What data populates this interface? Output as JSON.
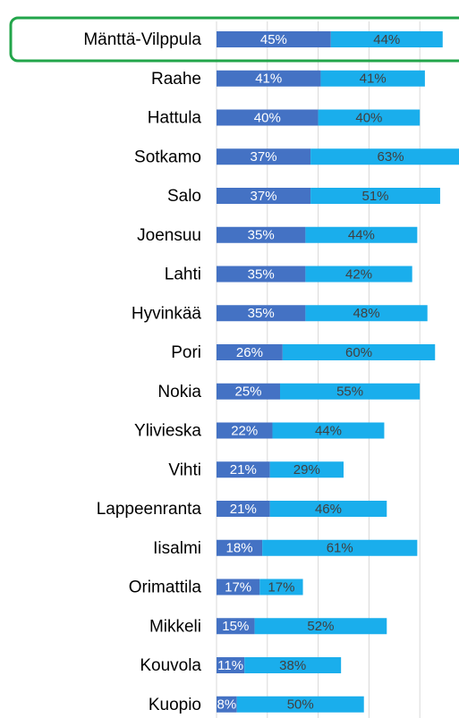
{
  "chart_data": {
    "type": "bar",
    "orientation": "horizontal",
    "stacked": true,
    "categories": [
      "Mänttä-Vilppula",
      "Raahe",
      "Hattula",
      "Sotkamo",
      "Salo",
      "Joensuu",
      "Lahti",
      "Hyvinkää",
      "Pori",
      "Nokia",
      "Ylivieska",
      "Vihti",
      "Lappeenranta",
      "Iisalmi",
      "Orimattila",
      "Mikkeli",
      "Kouvola",
      "Kuopio"
    ],
    "series": [
      {
        "color": "#4472c4",
        "label_color": "#ffffff",
        "values": [
          45,
          41,
          40,
          37,
          37,
          35,
          35,
          35,
          26,
          25,
          22,
          21,
          21,
          18,
          17,
          15,
          11,
          8
        ],
        "value_labels": [
          "45%",
          "41%",
          "40%",
          "37%",
          "37%",
          "35%",
          "35%",
          "35%",
          "26%",
          "25%",
          "22%",
          "21%",
          "21%",
          "18%",
          "17%",
          "15%",
          "11%",
          "8%"
        ]
      },
      {
        "color": "#1aaeec",
        "label_color": "#404040",
        "values": [
          44,
          41,
          40,
          63,
          51,
          44,
          42,
          48,
          60,
          55,
          44,
          29,
          46,
          61,
          17,
          52,
          38,
          50
        ],
        "value_labels": [
          "44%",
          "41%",
          "40%",
          "63%",
          "51%",
          "44%",
          "42%",
          "48%",
          "60%",
          "55%",
          "44%",
          "29%",
          "46%",
          "61%",
          "17%",
          "52%",
          "38%",
          "50%"
        ]
      }
    ],
    "xlim": [
      0,
      100
    ],
    "xticks": [
      0,
      20,
      40,
      60,
      80,
      100
    ],
    "grid": true
  }
}
